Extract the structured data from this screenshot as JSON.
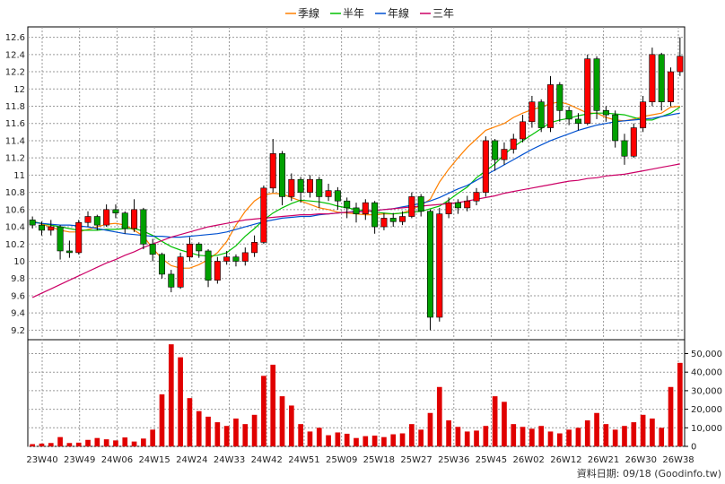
{
  "chart_data": [
    {
      "type": "candlestick",
      "x_ticks": [
        "23W40",
        "23W49",
        "24W06",
        "24W15",
        "24W24",
        "24W33",
        "24W42",
        "24W51",
        "25W09",
        "25W18",
        "25W27",
        "25W36",
        "25W45",
        "26W02",
        "26W12",
        "26W21",
        "26W30",
        "26W38"
      ],
      "y_ticks": [
        "12.6",
        "12.4",
        "12.2",
        "12",
        "11.8",
        "11.6",
        "11.4",
        "11.2",
        "11",
        "10.8",
        "10.6",
        "10.4",
        "10.2",
        "10",
        "9.8",
        "9.6",
        "9.4",
        "9.2"
      ],
      "ylim": [
        9.1,
        12.7
      ],
      "grid": true,
      "legend_position": "top-center",
      "colors": {
        "up": "#ff0000",
        "down": "#00a000",
        "border": "#000000"
      },
      "series": [
        {
          "name": "季線",
          "color": "#ff8000",
          "values": [
            10.47,
            10.43,
            10.4,
            10.36,
            10.34,
            10.34,
            10.37,
            10.4,
            10.43,
            10.44,
            10.42,
            10.36,
            10.29,
            10.15,
            10.03,
            9.95,
            9.92,
            9.92,
            9.96,
            10.02,
            10.1,
            10.23,
            10.42,
            10.58,
            10.7,
            10.77,
            10.79,
            10.78,
            10.74,
            10.7,
            10.66,
            10.62,
            10.6,
            10.57,
            10.56,
            10.55,
            10.54,
            10.54,
            10.55,
            10.55,
            10.56,
            10.6,
            10.65,
            10.72,
            10.92,
            11.07,
            11.2,
            11.32,
            11.42,
            11.52,
            11.56,
            11.6,
            11.67,
            11.72,
            11.76,
            11.79,
            11.83,
            11.85,
            11.82,
            11.77,
            11.72,
            11.72,
            11.67,
            11.64,
            11.63,
            11.65,
            11.68,
            11.7,
            11.72,
            11.79,
            11.8
          ]
        },
        {
          "name": "半年",
          "color": "#00c000",
          "values": [
            10.46,
            10.44,
            10.42,
            10.4,
            10.38,
            10.36,
            10.36,
            10.36,
            10.37,
            10.37,
            10.38,
            10.38,
            10.35,
            10.3,
            10.23,
            10.17,
            10.13,
            10.1,
            10.07,
            10.06,
            10.07,
            10.1,
            10.18,
            10.29,
            10.38,
            10.48,
            10.56,
            10.62,
            10.67,
            10.71,
            10.7,
            10.69,
            10.67,
            10.64,
            10.62,
            10.6,
            10.59,
            10.57,
            10.56,
            10.55,
            10.56,
            10.57,
            10.58,
            10.61,
            10.64,
            10.71,
            10.79,
            10.86,
            10.97,
            11.05,
            11.13,
            11.24,
            11.33,
            11.4,
            11.47,
            11.54,
            11.61,
            11.64,
            11.66,
            11.69,
            11.71,
            11.72,
            11.72,
            11.71,
            11.7,
            11.67,
            11.64,
            11.64,
            11.68,
            11.72,
            11.79
          ]
        },
        {
          "name": "年線",
          "color": "#0050d0",
          "values": [
            10.45,
            10.44,
            10.43,
            10.42,
            10.42,
            10.41,
            10.4,
            10.38,
            10.36,
            10.34,
            10.32,
            10.31,
            10.3,
            10.29,
            10.29,
            10.28,
            10.28,
            10.29,
            10.3,
            10.31,
            10.32,
            10.34,
            10.37,
            10.4,
            10.43,
            10.46,
            10.48,
            10.5,
            10.51,
            10.52,
            10.52,
            10.54,
            10.55,
            10.56,
            10.57,
            10.58,
            10.58,
            10.59,
            10.6,
            10.61,
            10.63,
            10.65,
            10.67,
            10.7,
            10.74,
            10.79,
            10.84,
            10.88,
            10.94,
            11.0,
            11.06,
            11.12,
            11.18,
            11.24,
            11.3,
            11.35,
            11.4,
            11.44,
            11.48,
            11.52,
            11.55,
            11.58,
            11.6,
            11.62,
            11.63,
            11.64,
            11.65,
            11.66,
            11.68,
            11.7,
            11.72
          ]
        },
        {
          "name": "三年",
          "color": "#cc0066",
          "values": [
            9.58,
            9.63,
            9.68,
            9.73,
            9.78,
            9.83,
            9.88,
            9.93,
            9.98,
            10.02,
            10.07,
            10.11,
            10.16,
            10.2,
            10.24,
            10.28,
            10.31,
            10.34,
            10.37,
            10.4,
            10.42,
            10.44,
            10.46,
            10.48,
            10.49,
            10.5,
            10.51,
            10.52,
            10.53,
            10.54,
            10.54,
            10.55,
            10.55,
            10.56,
            10.57,
            10.57,
            10.58,
            10.59,
            10.6,
            10.61,
            10.62,
            10.63,
            10.64,
            10.65,
            10.66,
            10.67,
            10.68,
            10.7,
            10.72,
            10.74,
            10.76,
            10.79,
            10.81,
            10.83,
            10.85,
            10.87,
            10.89,
            10.91,
            10.93,
            10.94,
            10.96,
            10.97,
            10.99,
            11.0,
            11.01,
            11.03,
            11.05,
            11.07,
            11.09,
            11.11,
            11.13
          ]
        }
      ],
      "candles": [
        [
          10.48,
          10.42,
          10.52,
          10.38
        ],
        [
          10.42,
          10.36,
          10.46,
          10.3
        ],
        [
          10.36,
          10.4,
          10.48,
          10.3
        ],
        [
          10.4,
          10.12,
          10.42,
          10.02
        ],
        [
          10.12,
          10.1,
          10.24,
          10.04
        ],
        [
          10.1,
          10.45,
          10.48,
          10.08
        ],
        [
          10.45,
          10.52,
          10.58,
          10.4
        ],
        [
          10.52,
          10.42,
          10.54,
          10.36
        ],
        [
          10.42,
          10.6,
          10.66,
          10.4
        ],
        [
          10.6,
          10.56,
          10.66,
          10.5
        ],
        [
          10.56,
          10.38,
          10.58,
          10.32
        ],
        [
          10.38,
          10.6,
          10.72,
          10.34
        ],
        [
          10.6,
          10.2,
          10.62,
          10.14
        ],
        [
          10.2,
          10.08,
          10.26,
          10.0
        ],
        [
          10.08,
          9.85,
          10.1,
          9.8
        ],
        [
          9.85,
          9.7,
          9.9,
          9.64
        ],
        [
          9.7,
          10.05,
          10.1,
          9.68
        ],
        [
          10.05,
          10.2,
          10.28,
          10.0
        ],
        [
          10.2,
          10.12,
          10.22,
          10.04
        ],
        [
          10.12,
          9.78,
          10.14,
          9.7
        ],
        [
          9.78,
          10.0,
          10.05,
          9.74
        ],
        [
          10.0,
          10.05,
          10.12,
          9.96
        ],
        [
          10.05,
          10.0,
          10.08,
          9.94
        ],
        [
          10.0,
          10.1,
          10.16,
          9.95
        ],
        [
          10.1,
          10.22,
          10.3,
          10.05
        ],
        [
          10.22,
          10.85,
          10.88,
          10.2
        ],
        [
          10.85,
          11.25,
          11.42,
          10.8
        ],
        [
          11.25,
          10.75,
          11.28,
          10.65
        ],
        [
          10.75,
          10.95,
          11.02,
          10.7
        ],
        [
          10.95,
          10.8,
          10.98,
          10.68
        ],
        [
          10.8,
          10.95,
          11.0,
          10.74
        ],
        [
          10.95,
          10.75,
          10.98,
          10.62
        ],
        [
          10.75,
          10.82,
          10.9,
          10.7
        ],
        [
          10.82,
          10.7,
          10.86,
          10.6
        ],
        [
          10.7,
          10.62,
          10.74,
          10.5
        ],
        [
          10.62,
          10.55,
          10.68,
          10.45
        ],
        [
          10.55,
          10.68,
          10.72,
          10.48
        ],
        [
          10.68,
          10.4,
          10.7,
          10.32
        ],
        [
          10.4,
          10.5,
          10.56,
          10.36
        ],
        [
          10.5,
          10.46,
          10.56,
          10.4
        ],
        [
          10.46,
          10.52,
          10.58,
          10.42
        ],
        [
          10.52,
          10.75,
          10.8,
          10.5
        ],
        [
          10.75,
          10.58,
          10.78,
          10.52
        ],
        [
          10.58,
          9.35,
          10.6,
          9.2
        ],
        [
          9.35,
          10.55,
          10.62,
          9.3
        ],
        [
          10.55,
          10.68,
          10.74,
          10.5
        ],
        [
          10.68,
          10.62,
          10.72,
          10.55
        ],
        [
          10.62,
          10.7,
          10.76,
          10.58
        ],
        [
          10.7,
          10.8,
          10.85,
          10.65
        ],
        [
          10.8,
          11.4,
          11.45,
          10.75
        ],
        [
          11.4,
          11.18,
          11.42,
          11.05
        ],
        [
          11.18,
          11.3,
          11.38,
          11.12
        ],
        [
          11.3,
          11.42,
          11.48,
          11.25
        ],
        [
          11.42,
          11.62,
          11.7,
          11.38
        ],
        [
          11.62,
          11.85,
          11.92,
          11.55
        ],
        [
          11.85,
          11.55,
          11.88,
          11.5
        ],
        [
          11.55,
          12.05,
          12.15,
          11.5
        ],
        [
          12.05,
          11.75,
          12.08,
          11.62
        ],
        [
          11.75,
          11.65,
          11.8,
          11.58
        ],
        [
          11.65,
          11.6,
          11.72,
          11.52
        ],
        [
          11.6,
          12.35,
          12.4,
          11.58
        ],
        [
          12.35,
          11.75,
          12.38,
          11.65
        ],
        [
          11.75,
          11.7,
          11.8,
          11.62
        ],
        [
          11.7,
          11.4,
          11.75,
          11.32
        ],
        [
          11.4,
          11.22,
          11.48,
          11.12
        ],
        [
          11.22,
          11.55,
          11.6,
          11.2
        ],
        [
          11.55,
          11.85,
          11.92,
          11.5
        ],
        [
          11.85,
          12.4,
          12.48,
          11.8
        ],
        [
          12.4,
          11.85,
          12.42,
          11.75
        ],
        [
          11.85,
          12.2,
          12.25,
          11.8
        ],
        [
          12.2,
          12.38,
          12.6,
          12.15
        ]
      ]
    },
    {
      "type": "bar",
      "y_ticks": [
        "50,000",
        "40,000",
        "30,000",
        "20,000",
        "10,000",
        "0"
      ],
      "ylim": [
        0,
        57000
      ],
      "values": [
        1200,
        1500,
        1800,
        5000,
        1800,
        2000,
        3500,
        4500,
        3800,
        3200,
        4800,
        2600,
        4200,
        9000,
        28000,
        55000,
        48000,
        26000,
        19000,
        16000,
        13000,
        11000,
        15000,
        12000,
        17000,
        38000,
        44000,
        27000,
        22000,
        12000,
        8000,
        10000,
        6000,
        7500,
        6800,
        4500,
        5500,
        5800,
        5000,
        6500,
        7000,
        12000,
        9000,
        18000,
        32000,
        14000,
        10500,
        8000,
        8500,
        11000,
        27000,
        24000,
        12000,
        10500,
        9500,
        11000,
        8000,
        7000,
        9000,
        10000,
        14000,
        18000,
        12000,
        9000,
        11000,
        13000,
        17000,
        15000,
        10000,
        32000,
        45000
      ]
    }
  ],
  "legend": [
    {
      "name": "季線",
      "color": "#ff8000"
    },
    {
      "name": "半年",
      "color": "#00c000"
    },
    {
      "name": "年線",
      "color": "#0050d0"
    },
    {
      "name": "三年",
      "color": "#cc0066"
    }
  ],
  "footer": "資料日期: 09/18  (Goodinfo.tw)"
}
